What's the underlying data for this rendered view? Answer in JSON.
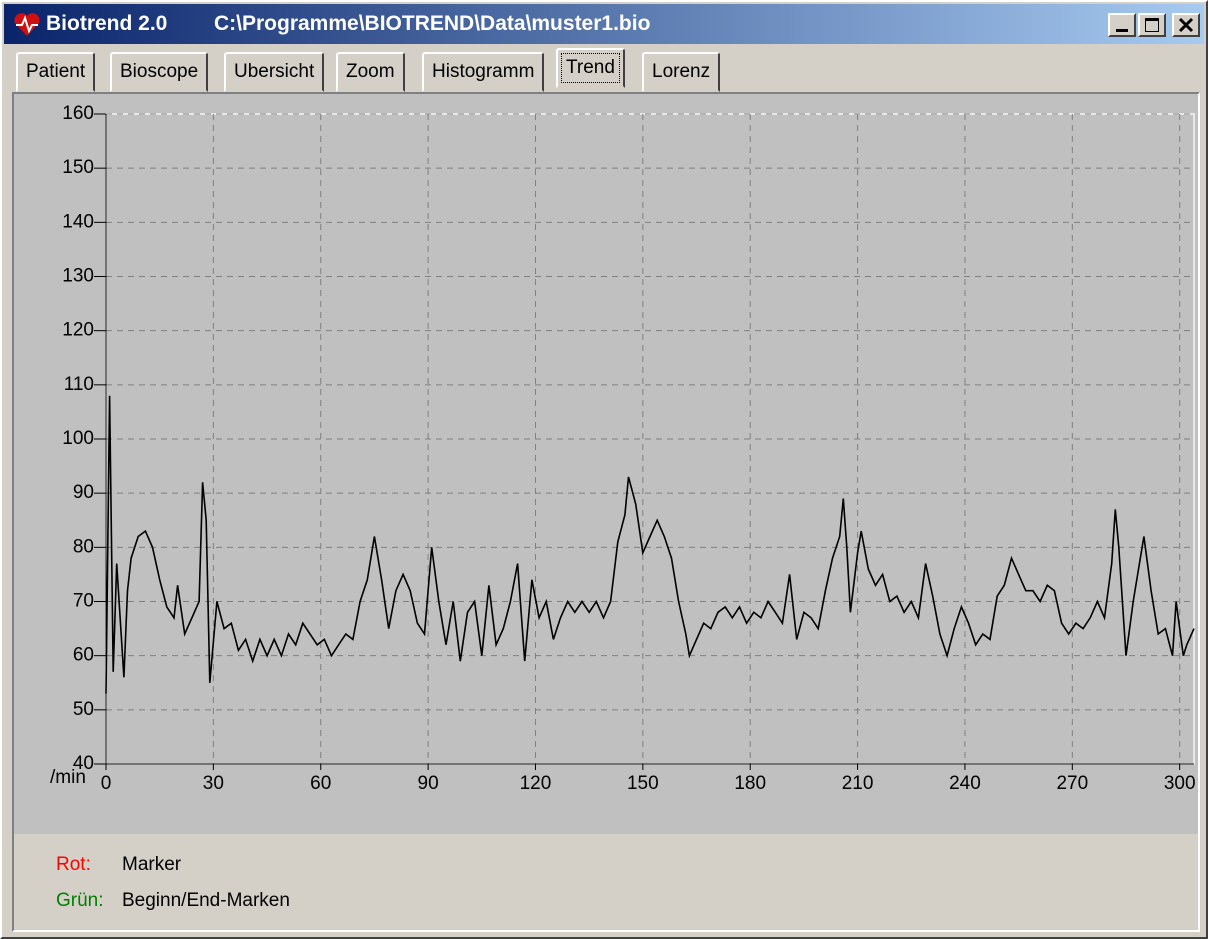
{
  "window": {
    "app": "Biotrend 2.0",
    "path": "C:\\Programme\\BIOTREND\\Data\\muster1.bio"
  },
  "tabs": [
    "Patient",
    "Bioscope",
    "Ubersicht",
    "Zoom",
    "Histogramm",
    "Trend",
    "Lorenz"
  ],
  "active_tab": 5,
  "chart_data": {
    "type": "line",
    "y_label": "/min",
    "x": [
      0,
      1,
      2,
      3,
      5,
      6,
      7,
      9,
      11,
      13,
      15,
      17,
      19,
      20,
      22,
      24,
      26,
      27,
      28,
      29,
      31,
      33,
      35,
      37,
      39,
      41,
      43,
      45,
      47,
      49,
      51,
      53,
      55,
      57,
      59,
      61,
      63,
      65,
      67,
      69,
      71,
      73,
      75,
      77,
      79,
      81,
      83,
      85,
      87,
      89,
      91,
      93,
      95,
      97,
      99,
      101,
      103,
      105,
      107,
      109,
      111,
      113,
      115,
      117,
      119,
      121,
      123,
      125,
      127,
      129,
      131,
      133,
      135,
      137,
      139,
      141,
      143,
      145,
      146,
      148,
      150,
      152,
      154,
      156,
      158,
      160,
      162,
      163,
      165,
      167,
      169,
      171,
      173,
      175,
      177,
      179,
      181,
      183,
      185,
      187,
      189,
      191,
      193,
      195,
      197,
      199,
      201,
      203,
      205,
      206,
      207,
      208,
      210,
      211,
      213,
      215,
      217,
      219,
      221,
      223,
      225,
      227,
      229,
      231,
      233,
      235,
      237,
      239,
      241,
      243,
      245,
      247,
      249,
      251,
      253,
      255,
      257,
      259,
      261,
      263,
      265,
      267,
      269,
      271,
      273,
      275,
      277,
      279,
      281,
      282,
      283,
      285,
      287,
      289,
      290,
      292,
      294,
      296,
      298,
      299,
      301,
      302,
      304
    ],
    "values": [
      53,
      108,
      57,
      77,
      56,
      72,
      78,
      82,
      83,
      80,
      74,
      69,
      67,
      73,
      64,
      67,
      70,
      92,
      85,
      55,
      70,
      65,
      66,
      61,
      63,
      59,
      63,
      60,
      63,
      60,
      64,
      62,
      66,
      64,
      62,
      63,
      60,
      62,
      64,
      63,
      70,
      74,
      82,
      74,
      65,
      72,
      75,
      72,
      66,
      64,
      80,
      70,
      62,
      70,
      59,
      68,
      70,
      60,
      73,
      62,
      65,
      70,
      77,
      59,
      74,
      67,
      70,
      63,
      67,
      70,
      68,
      70,
      68,
      70,
      67,
      70,
      81,
      86,
      93,
      88,
      79,
      82,
      85,
      82,
      78,
      70,
      64,
      60,
      63,
      66,
      65,
      68,
      69,
      67,
      69,
      66,
      68,
      67,
      70,
      68,
      66,
      75,
      63,
      68,
      67,
      65,
      72,
      78,
      82,
      89,
      80,
      68,
      79,
      83,
      76,
      73,
      75,
      70,
      71,
      68,
      70,
      67,
      77,
      71,
      64,
      60,
      65,
      69,
      66,
      62,
      64,
      63,
      71,
      73,
      78,
      75,
      72,
      72,
      70,
      73,
      72,
      66,
      64,
      66,
      65,
      67,
      70,
      67,
      77,
      87,
      80,
      60,
      70,
      78,
      82,
      72,
      64,
      65,
      60,
      70,
      60,
      62,
      65
    ],
    "color": "#000000",
    "background": "#c0c0c0",
    "grid": true,
    "xlim": [
      0,
      304
    ],
    "xticks": [
      0,
      30,
      60,
      90,
      120,
      150,
      180,
      210,
      240,
      270,
      300
    ],
    "ylim": [
      40,
      160
    ],
    "yticks": [
      40,
      50,
      60,
      70,
      80,
      90,
      100,
      110,
      120,
      130,
      140,
      150,
      160
    ]
  },
  "notes": [
    {
      "key": "Rot:",
      "color": "#ff0000",
      "text": "Marker"
    },
    {
      "key": "Grün:",
      "color": "#008000",
      "text": "Beginn/End-Marken"
    }
  ]
}
